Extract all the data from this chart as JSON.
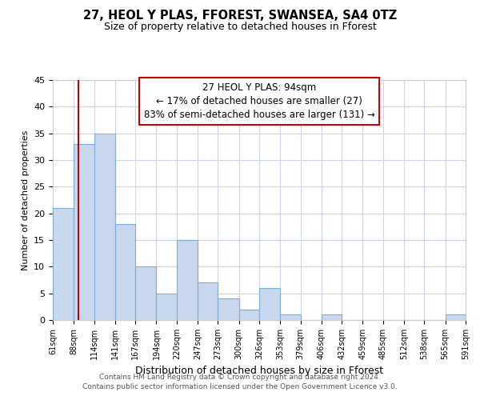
{
  "title": "27, HEOL Y PLAS, FFOREST, SWANSEA, SA4 0TZ",
  "subtitle": "Size of property relative to detached houses in Fforest",
  "xlabel": "Distribution of detached houses by size in Fforest",
  "ylabel": "Number of detached properties",
  "bar_edges": [
    61,
    88,
    114,
    141,
    167,
    194,
    220,
    247,
    273,
    300,
    326,
    353,
    379,
    406,
    432,
    459,
    485,
    512,
    538,
    565,
    591
  ],
  "bar_heights": [
    21,
    33,
    35,
    18,
    10,
    5,
    15,
    7,
    4,
    2,
    6,
    1,
    0,
    1,
    0,
    0,
    0,
    0,
    0,
    1
  ],
  "bar_color": "#c8d8ee",
  "bar_edgecolor": "#7facd4",
  "vline_x": 94,
  "vline_color": "#cc0000",
  "ylim": [
    0,
    45
  ],
  "yticks": [
    0,
    5,
    10,
    15,
    20,
    25,
    30,
    35,
    40,
    45
  ],
  "annotation_title": "27 HEOL Y PLAS: 94sqm",
  "annotation_line1": "← 17% of detached houses are smaller (27)",
  "annotation_line2": "83% of semi-detached houses are larger (131) →",
  "annotation_box_color": "#ffffff",
  "annotation_box_edgecolor": "#cc0000",
  "footer_line1": "Contains HM Land Registry data © Crown copyright and database right 2024.",
  "footer_line2": "Contains public sector information licensed under the Open Government Licence v3.0.",
  "tick_labels": [
    "61sqm",
    "88sqm",
    "114sqm",
    "141sqm",
    "167sqm",
    "194sqm",
    "220sqm",
    "247sqm",
    "273sqm",
    "300sqm",
    "326sqm",
    "353sqm",
    "379sqm",
    "406sqm",
    "432sqm",
    "459sqm",
    "485sqm",
    "512sqm",
    "538sqm",
    "565sqm",
    "591sqm"
  ],
  "bg_color": "#ffffff",
  "grid_color": "#ccd5e5",
  "title_fontsize": 10.5,
  "subtitle_fontsize": 9,
  "ylabel_fontsize": 8,
  "xlabel_fontsize": 9,
  "annot_fontsize": 8.5,
  "tick_fontsize": 7
}
